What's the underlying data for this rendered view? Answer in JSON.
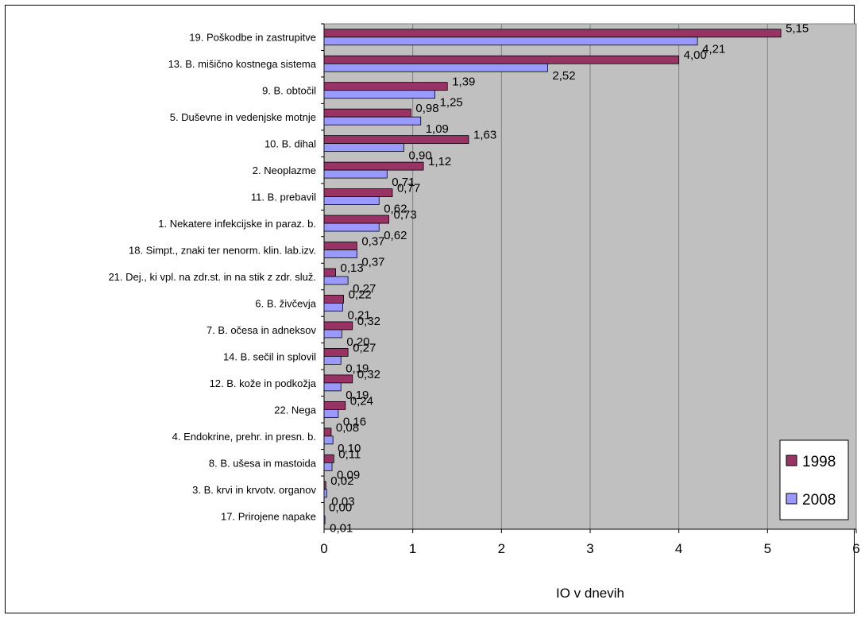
{
  "chart_data": {
    "type": "bar",
    "orientation": "horizontal",
    "title": "",
    "xlabel": "IO v dnevih",
    "ylabel": "",
    "xlim": [
      0,
      6
    ],
    "x_ticks": [
      "0",
      "1",
      "2",
      "3",
      "4",
      "5",
      "6"
    ],
    "grid": "vertical",
    "legend_position": "bottom-right",
    "categories": [
      "19. Poškodbe in zastrupitve",
      "13. B. mišično kostnega sistema",
      "9. B. obtočil",
      "5. Duševne in vedenjske motnje",
      "10. B. dihal",
      "2. Neoplazme",
      "11. B. prebavil",
      "1. Nekatere infekcijske in paraz. b.",
      "18. Simpt., znaki ter nenorm. klin. lab.izv.",
      "21. Dej., ki vpl. na zdr.st. in na stik z zdr. služ.",
      "6. B. živčevja",
      "7. B. očesa in adneksov",
      "14. B. sečil in splovil",
      "12. B. kože in podkožja",
      "22. Nega",
      "4. Endokrine, prehr. in presn. b.",
      "8. B. ušesa in mastoida",
      "3. B. krvi in krvotv. organov",
      "17. Prirojene napake"
    ],
    "series": [
      {
        "name": "1998",
        "color": "#993366",
        "values": [
          5.15,
          4.0,
          1.39,
          0.98,
          1.63,
          1.12,
          0.77,
          0.73,
          0.37,
          0.13,
          0.22,
          0.32,
          0.27,
          0.32,
          0.24,
          0.08,
          0.11,
          0.02,
          0.0
        ],
        "labels": [
          "5,15",
          "4,00",
          "1,39",
          "0,98",
          "1,63",
          "1,12",
          "0,77",
          "0,73",
          "0,37",
          "0,13",
          "0,22",
          "0,32",
          "0,27",
          "0,32",
          "0,24",
          "0,08",
          "0,11",
          "0,02",
          "0,00"
        ]
      },
      {
        "name": "2008",
        "color": "#9999ff",
        "values": [
          4.21,
          2.52,
          1.25,
          1.09,
          0.9,
          0.71,
          0.62,
          0.62,
          0.37,
          0.27,
          0.21,
          0.2,
          0.19,
          0.19,
          0.16,
          0.1,
          0.09,
          0.03,
          0.01
        ],
        "labels": [
          "4,21",
          "2,52",
          "1,25",
          "1,09",
          "0,90",
          "0,71",
          "0,62",
          "0,62",
          "0,37",
          "0,27",
          "0,21",
          "0,20",
          "0,19",
          "0,19",
          "0,16",
          "0,10",
          "0,09",
          "0,03",
          "0,01"
        ]
      }
    ],
    "colors": {
      "plot_background": "#c0c0c0",
      "gridline": "#808080"
    }
  }
}
